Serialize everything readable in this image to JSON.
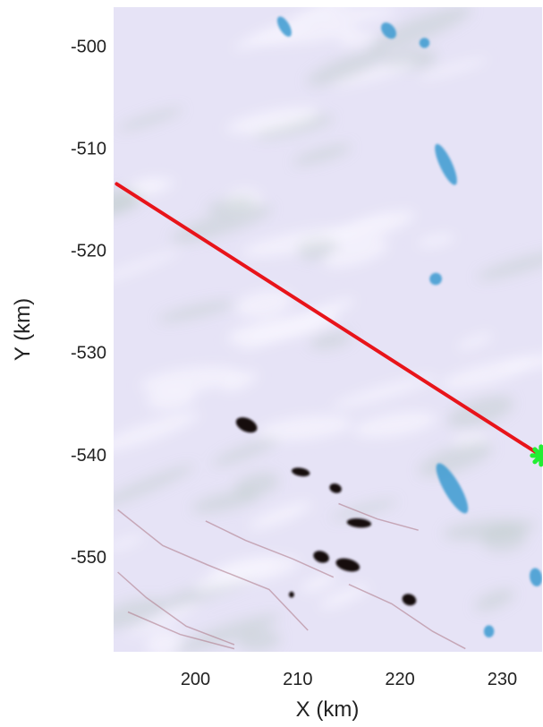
{
  "map": {
    "xlabel": "X (km)",
    "ylabel": "Y (km)",
    "x_ticks": [
      200,
      210,
      220,
      230
    ],
    "y_ticks": [
      -500,
      -510,
      -520,
      -530,
      -540,
      -550
    ],
    "xlim": [
      192.0,
      233.9
    ],
    "ylim": [
      -559.3,
      -496.2
    ],
    "colors": {
      "background_ice": "#e6e3f6",
      "ice_shadow": "#bfcdc9",
      "ice_highlight": "#f6f5fd",
      "meltwater": "#3a9ad0",
      "rock_outcrop": "#160c10",
      "moraine": "#b07f8e",
      "transect_line": "#e8141a",
      "end_marker": "#22ee33"
    },
    "transect": {
      "start": {
        "x": 192.3,
        "y": -513.5
      },
      "end": {
        "x": 233.8,
        "y": -540.1
      }
    },
    "end_marker_icon": "green-cross-marker",
    "meltwater_features": [
      {
        "x": 208.7,
        "y": -498.1,
        "rx": 0.5,
        "ry": 1.1,
        "rot": -30
      },
      {
        "x": 218.9,
        "y": -498.5,
        "rx": 0.6,
        "ry": 0.9,
        "rot": -40
      },
      {
        "x": 222.4,
        "y": -499.7,
        "rx": 0.5,
        "ry": 0.5,
        "rot": 0
      },
      {
        "x": 224.5,
        "y": -511.6,
        "rx": 0.6,
        "ry": 2.2,
        "rot": -25
      },
      {
        "x": 223.5,
        "y": -522.8,
        "rx": 0.6,
        "ry": 0.6,
        "rot": -20
      },
      {
        "x": 225.1,
        "y": -543.3,
        "rx": 0.8,
        "ry": 2.8,
        "rot": -30
      },
      {
        "x": 233.3,
        "y": -552.0,
        "rx": 0.6,
        "ry": 0.9,
        "rot": -10
      },
      {
        "x": 228.7,
        "y": -557.3,
        "rx": 0.5,
        "ry": 0.6,
        "rot": 0
      }
    ],
    "rock_outcrops": [
      {
        "x": 205.0,
        "y": -537.1,
        "rx": 1.1,
        "ry": 0.65,
        "rot": 25
      },
      {
        "x": 210.3,
        "y": -541.7,
        "rx": 0.9,
        "ry": 0.4,
        "rot": 10
      },
      {
        "x": 213.7,
        "y": -543.3,
        "rx": 0.6,
        "ry": 0.45,
        "rot": 20
      },
      {
        "x": 216.0,
        "y": -546.7,
        "rx": 1.2,
        "ry": 0.45,
        "rot": 5
      },
      {
        "x": 212.3,
        "y": -550.0,
        "rx": 0.8,
        "ry": 0.55,
        "rot": 20
      },
      {
        "x": 214.9,
        "y": -550.8,
        "rx": 1.2,
        "ry": 0.6,
        "rot": 15
      },
      {
        "x": 220.9,
        "y": -554.2,
        "rx": 0.7,
        "ry": 0.55,
        "rot": 20
      },
      {
        "x": 209.4,
        "y": -553.7,
        "rx": 0.25,
        "ry": 0.3,
        "rot": 0
      }
    ],
    "moraine_streaks": [
      [
        [
          192.4,
          -545.4
        ],
        [
          196.8,
          -548.9
        ],
        [
          201.2,
          -550.8
        ],
        [
          207.2,
          -553.2
        ],
        [
          211.0,
          -557.2
        ]
      ],
      [
        [
          192.4,
          -551.5
        ],
        [
          195.2,
          -554.0
        ],
        [
          199.1,
          -556.8
        ],
        [
          203.8,
          -558.6
        ]
      ],
      [
        [
          201.0,
          -546.5
        ],
        [
          204.9,
          -548.4
        ],
        [
          209.5,
          -550.2
        ],
        [
          213.5,
          -552.0
        ]
      ],
      [
        [
          215.0,
          -552.7
        ],
        [
          219.2,
          -554.6
        ],
        [
          223.2,
          -557.3
        ],
        [
          226.4,
          -559.0
        ]
      ],
      [
        [
          214.0,
          -544.8
        ],
        [
          217.8,
          -546.3
        ],
        [
          221.8,
          -547.4
        ]
      ],
      [
        [
          193.4,
          -555.4
        ],
        [
          198.5,
          -557.6
        ],
        [
          203.8,
          -559.0
        ]
      ]
    ]
  }
}
